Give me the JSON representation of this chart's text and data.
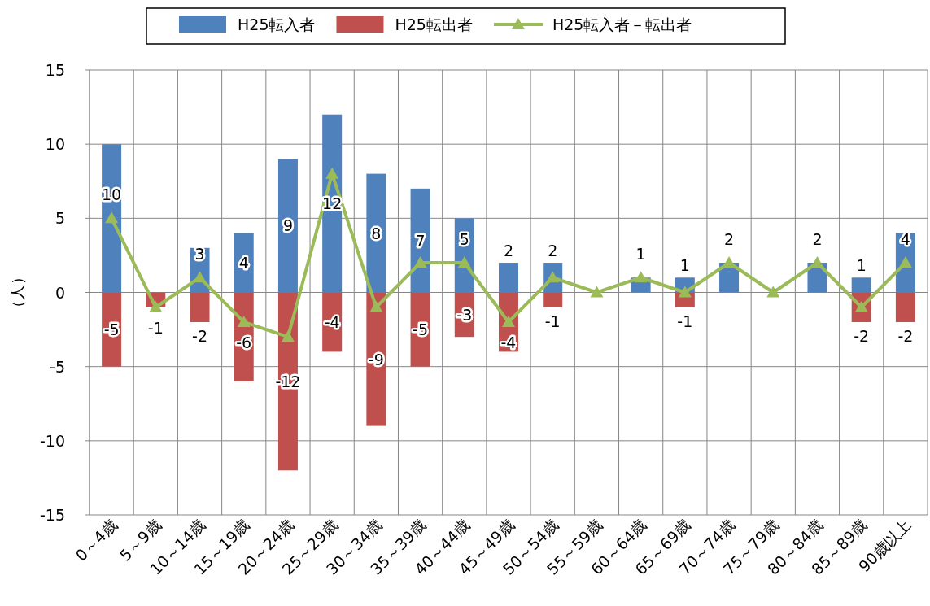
{
  "chart_data": {
    "type": "bar",
    "stacked": true,
    "ylabel": "（人）",
    "categories": [
      "0～4歳",
      "5～9歳",
      "10～14歳",
      "15～19歳",
      "20～24歳",
      "25～29歳",
      "30～34歳",
      "35～39歳",
      "40～44歳",
      "45～49歳",
      "50～54歳",
      "55～59歳",
      "60～64歳",
      "65～69歳",
      "70～74歳",
      "75～79歳",
      "80～84歳",
      "85～89歳",
      "90歳以上"
    ],
    "series": [
      {
        "name": "H25転入者",
        "color": "#4f81bd",
        "values": [
          10,
          null,
          3,
          4,
          9,
          12,
          8,
          7,
          5,
          2,
          2,
          null,
          1,
          1,
          2,
          null,
          2,
          1,
          4
        ],
        "value_labels": [
          "10",
          null,
          "3",
          "4",
          "9",
          "12",
          "8",
          "7",
          "5",
          "2",
          "2",
          null,
          "1",
          "1",
          "2",
          null,
          "2",
          "1",
          "4"
        ]
      },
      {
        "name": "H25転出者",
        "color": "#c0504d",
        "values": [
          -5,
          -1,
          -2,
          -6,
          -12,
          -4,
          -9,
          -5,
          -3,
          -4,
          -1,
          null,
          null,
          -1,
          null,
          null,
          null,
          -2,
          -2
        ],
        "value_labels": [
          "-5",
          "-1",
          "-2",
          "-6",
          "-12",
          "-4",
          "-9",
          "-5",
          "-3",
          "-4",
          "-1",
          null,
          null,
          "-1",
          null,
          null,
          null,
          "-2",
          "-2"
        ]
      },
      {
        "name": "H25転入者－転出者",
        "type": "line",
        "color": "#9bbb59",
        "marker": "triangle",
        "values": [
          5,
          -1,
          1,
          -2,
          -3,
          8,
          -1,
          2,
          2,
          -2,
          1,
          0,
          1,
          0,
          2,
          0,
          2,
          -1,
          2
        ]
      }
    ],
    "ylim": [
      -15,
      15
    ],
    "yticks": [
      -15,
      -10,
      -5,
      0,
      5,
      10,
      15
    ],
    "grid": true,
    "legend": "top"
  }
}
